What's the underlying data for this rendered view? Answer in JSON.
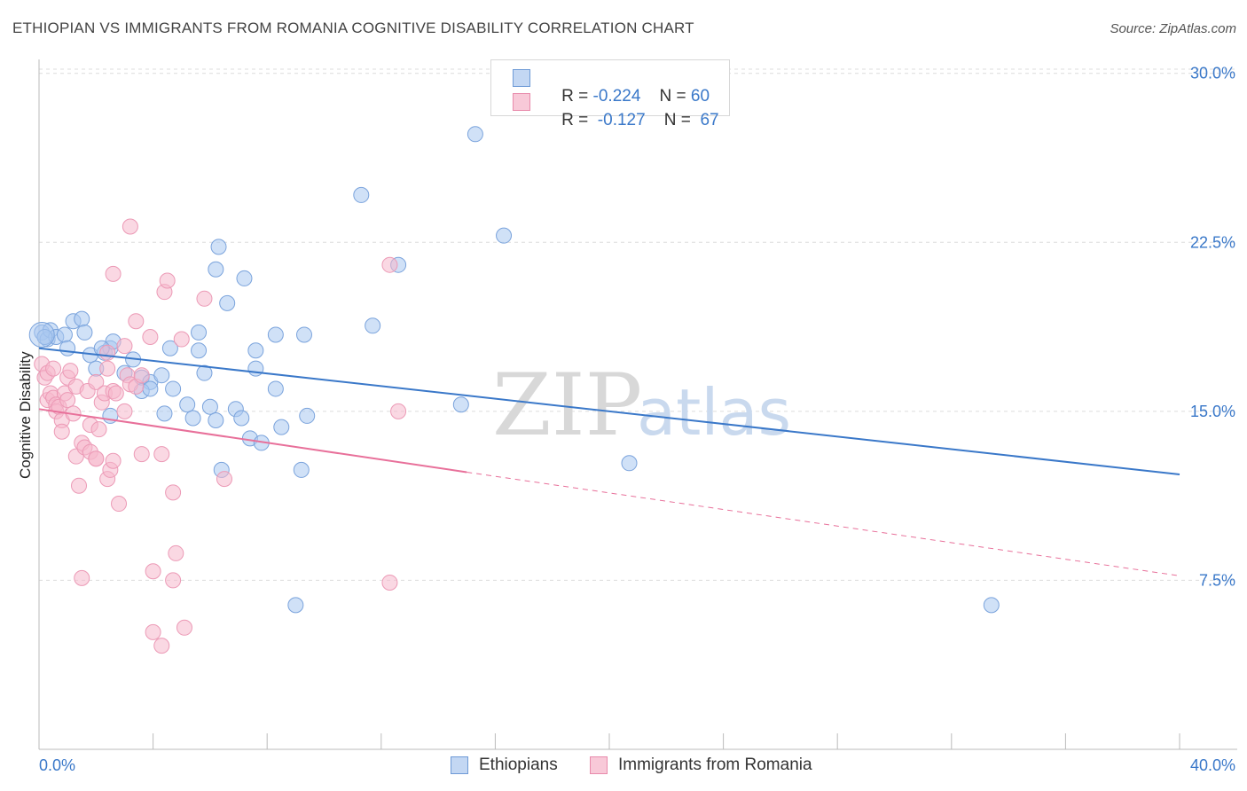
{
  "title": "ETHIOPIAN VS IMMIGRANTS FROM ROMANIA COGNITIVE DISABILITY CORRELATION CHART",
  "source": "Source: ZipAtlas.com",
  "watermark": {
    "zip": "ZIP",
    "atlas": "atlas"
  },
  "colors": {
    "blue": "#3a78c9",
    "blue_fill": "#aac8f0",
    "pink": "#e8709a",
    "pink_fill": "#f6b8cc"
  },
  "legend": {
    "r_label": "R =",
    "n_label": "N =",
    "series": [
      {
        "name": "Ethiopians",
        "r": "-0.224",
        "n": "60"
      },
      {
        "name": "Immigrants from Romania",
        "r": "-0.127",
        "n": "67"
      }
    ]
  },
  "chart_data": {
    "type": "scatter",
    "title": "ETHIOPIAN VS IMMIGRANTS FROM ROMANIA COGNITIVE DISABILITY CORRELATION CHART",
    "xlabel": "",
    "ylabel": "Cognitive Disability",
    "xlim": [
      0,
      40
    ],
    "ylim": [
      0,
      30.5
    ],
    "x_tick_labels": [
      "0.0%",
      "40.0%"
    ],
    "y_ticks": [
      7.5,
      15.0,
      22.5,
      30.0
    ],
    "y_tick_labels": [
      "7.5%",
      "15.0%",
      "22.5%",
      "30.0%"
    ],
    "grid": true,
    "series": [
      {
        "name": "Ethiopians",
        "color": "#3a78c9",
        "trend": {
          "x0": 0,
          "y0": 17.8,
          "x1": 40,
          "y1": 12.2,
          "dashed_from": null
        },
        "points": [
          [
            0.1,
            18.5
          ],
          [
            0.3,
            18.2
          ],
          [
            0.4,
            18.6
          ],
          [
            0.6,
            18.3
          ],
          [
            0.9,
            18.4
          ],
          [
            1.2,
            19.0
          ],
          [
            1.5,
            19.1
          ],
          [
            1.6,
            18.5
          ],
          [
            1.0,
            17.8
          ],
          [
            1.8,
            17.5
          ],
          [
            2.3,
            17.6
          ],
          [
            2.5,
            17.8
          ],
          [
            2.6,
            18.1
          ],
          [
            3.3,
            17.3
          ],
          [
            2.0,
            16.9
          ],
          [
            2.5,
            14.8
          ],
          [
            3.0,
            16.7
          ],
          [
            3.6,
            16.5
          ],
          [
            3.9,
            16.3
          ],
          [
            4.3,
            16.6
          ],
          [
            3.6,
            15.9
          ],
          [
            3.9,
            16.0
          ],
          [
            4.6,
            17.8
          ],
          [
            4.4,
            14.9
          ],
          [
            4.7,
            16.0
          ],
          [
            5.2,
            15.3
          ],
          [
            5.4,
            14.7
          ],
          [
            5.6,
            17.7
          ],
          [
            5.6,
            18.5
          ],
          [
            6.0,
            15.2
          ],
          [
            5.8,
            16.7
          ],
          [
            6.2,
            14.6
          ],
          [
            6.4,
            12.4
          ],
          [
            6.2,
            21.3
          ],
          [
            6.6,
            19.8
          ],
          [
            6.3,
            22.3
          ],
          [
            6.9,
            15.1
          ],
          [
            7.1,
            14.7
          ],
          [
            7.2,
            20.9
          ],
          [
            7.4,
            13.8
          ],
          [
            7.6,
            17.7
          ],
          [
            7.6,
            16.9
          ],
          [
            7.8,
            13.6
          ],
          [
            8.3,
            16.0
          ],
          [
            8.3,
            18.4
          ],
          [
            8.5,
            14.3
          ],
          [
            9.3,
            18.4
          ],
          [
            9.4,
            14.8
          ],
          [
            9.2,
            12.4
          ],
          [
            9.0,
            6.4
          ],
          [
            11.7,
            18.8
          ],
          [
            11.3,
            24.6
          ],
          [
            12.6,
            21.5
          ],
          [
            14.8,
            15.3
          ],
          [
            15.3,
            27.3
          ],
          [
            16.3,
            22.8
          ],
          [
            20.7,
            12.7
          ],
          [
            33.4,
            6.4
          ],
          [
            0.2,
            18.3
          ],
          [
            2.2,
            17.8
          ]
        ]
      },
      {
        "name": "Immigrants from Romania",
        "color": "#e8709a",
        "trend": {
          "x0": 0,
          "y0": 15.1,
          "x1": 15,
          "y1": 12.3,
          "dashed_to": 40,
          "dashed_y1": 7.7
        },
        "points": [
          [
            0.1,
            17.1
          ],
          [
            0.2,
            16.5
          ],
          [
            0.3,
            16.7
          ],
          [
            0.3,
            15.5
          ],
          [
            0.4,
            15.8
          ],
          [
            0.5,
            15.6
          ],
          [
            0.6,
            15.3
          ],
          [
            0.6,
            15.0
          ],
          [
            0.7,
            15.2
          ],
          [
            0.8,
            14.6
          ],
          [
            0.8,
            14.1
          ],
          [
            0.9,
            15.8
          ],
          [
            1.0,
            15.5
          ],
          [
            1.0,
            16.5
          ],
          [
            1.1,
            16.8
          ],
          [
            1.3,
            16.1
          ],
          [
            1.3,
            13.0
          ],
          [
            1.4,
            11.7
          ],
          [
            1.5,
            13.6
          ],
          [
            1.6,
            13.4
          ],
          [
            1.7,
            15.9
          ],
          [
            1.8,
            14.4
          ],
          [
            1.8,
            13.2
          ],
          [
            2.0,
            12.9
          ],
          [
            2.0,
            12.9
          ],
          [
            2.0,
            16.3
          ],
          [
            2.1,
            14.2
          ],
          [
            2.2,
            15.4
          ],
          [
            2.3,
            15.8
          ],
          [
            2.4,
            16.9
          ],
          [
            2.4,
            17.6
          ],
          [
            2.4,
            12.0
          ],
          [
            2.5,
            12.4
          ],
          [
            2.6,
            15.9
          ],
          [
            2.7,
            15.8
          ],
          [
            2.6,
            12.8
          ],
          [
            2.6,
            21.1
          ],
          [
            2.8,
            10.9
          ],
          [
            3.0,
            15.0
          ],
          [
            3.0,
            17.9
          ],
          [
            3.1,
            16.6
          ],
          [
            3.2,
            16.2
          ],
          [
            3.2,
            23.2
          ],
          [
            3.4,
            16.1
          ],
          [
            3.4,
            19.0
          ],
          [
            3.6,
            13.1
          ],
          [
            3.6,
            16.6
          ],
          [
            3.9,
            18.3
          ],
          [
            4.0,
            7.9
          ],
          [
            4.0,
            5.2
          ],
          [
            4.3,
            13.1
          ],
          [
            4.4,
            20.3
          ],
          [
            4.3,
            4.6
          ],
          [
            4.5,
            20.8
          ],
          [
            4.7,
            7.5
          ],
          [
            4.7,
            11.4
          ],
          [
            4.8,
            8.7
          ],
          [
            5.0,
            18.2
          ],
          [
            5.1,
            5.4
          ],
          [
            5.8,
            20.0
          ],
          [
            6.5,
            12.0
          ],
          [
            12.3,
            21.5
          ],
          [
            12.3,
            7.4
          ],
          [
            12.6,
            15.0
          ],
          [
            1.2,
            14.9
          ],
          [
            0.5,
            16.9
          ],
          [
            1.5,
            7.6
          ]
        ]
      }
    ]
  }
}
